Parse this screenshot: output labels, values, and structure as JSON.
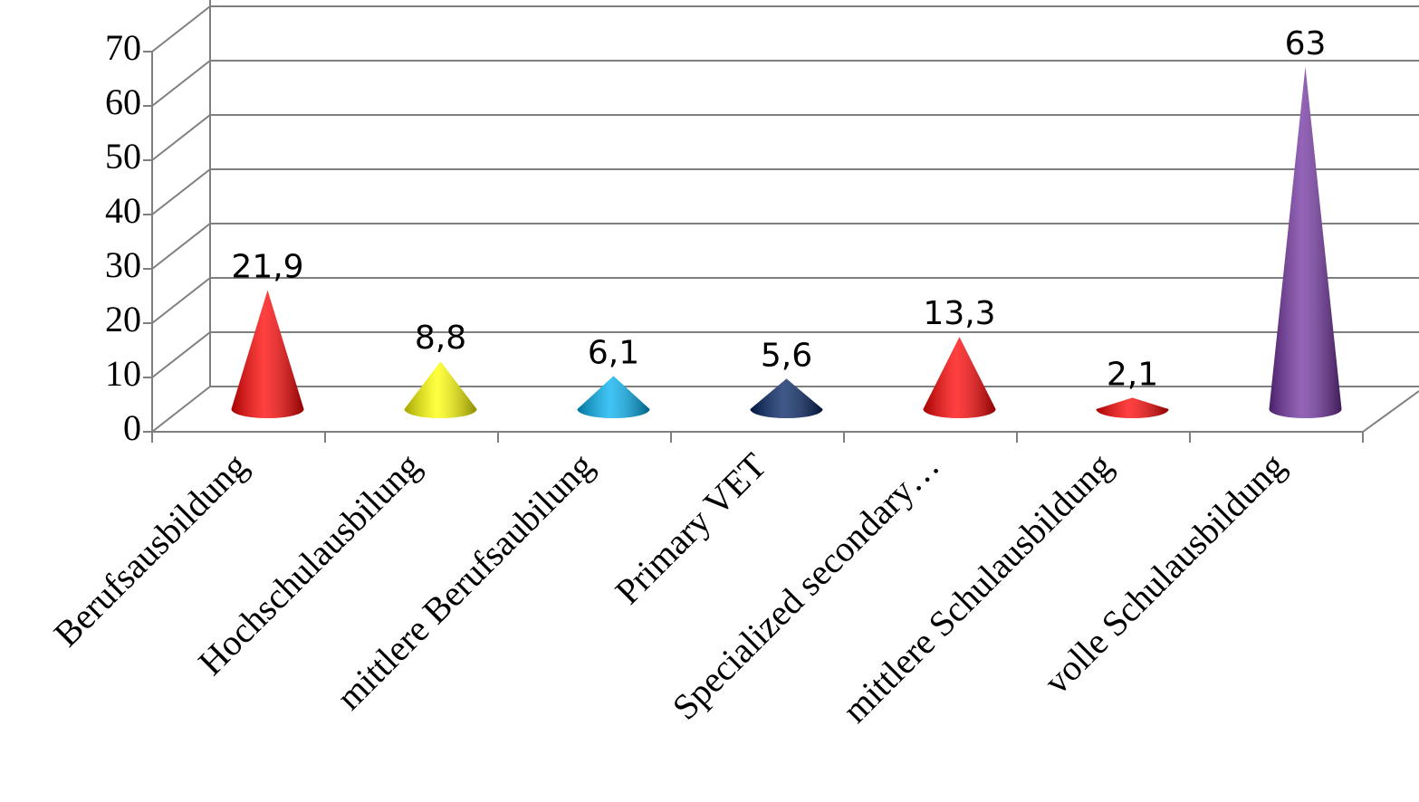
{
  "chart_data": {
    "type": "cone",
    "categories": [
      "Berufsausbildung",
      "Hochschulausbilung",
      "mittlere Berufsaubilung",
      "Primary VET",
      "Specialized secondary…",
      "mittlere Schulausbildung",
      "volle Schulausbildung"
    ],
    "values": [
      21.9,
      8.8,
      6.1,
      5.6,
      13.3,
      2.1,
      63
    ],
    "value_labels": [
      "21,9",
      "8,8",
      "6,1",
      "5,6",
      "13,3",
      "2,1",
      "63"
    ],
    "colors": [
      "#ff0000",
      "#ffff00",
      "#00b0f0",
      "#002060",
      "#ff0000",
      "#ff0000",
      "#7030a0"
    ],
    "ylim": [
      0,
      70
    ],
    "yticks": [
      0,
      10,
      20,
      30,
      40,
      50,
      60,
      70
    ],
    "grid": true
  }
}
